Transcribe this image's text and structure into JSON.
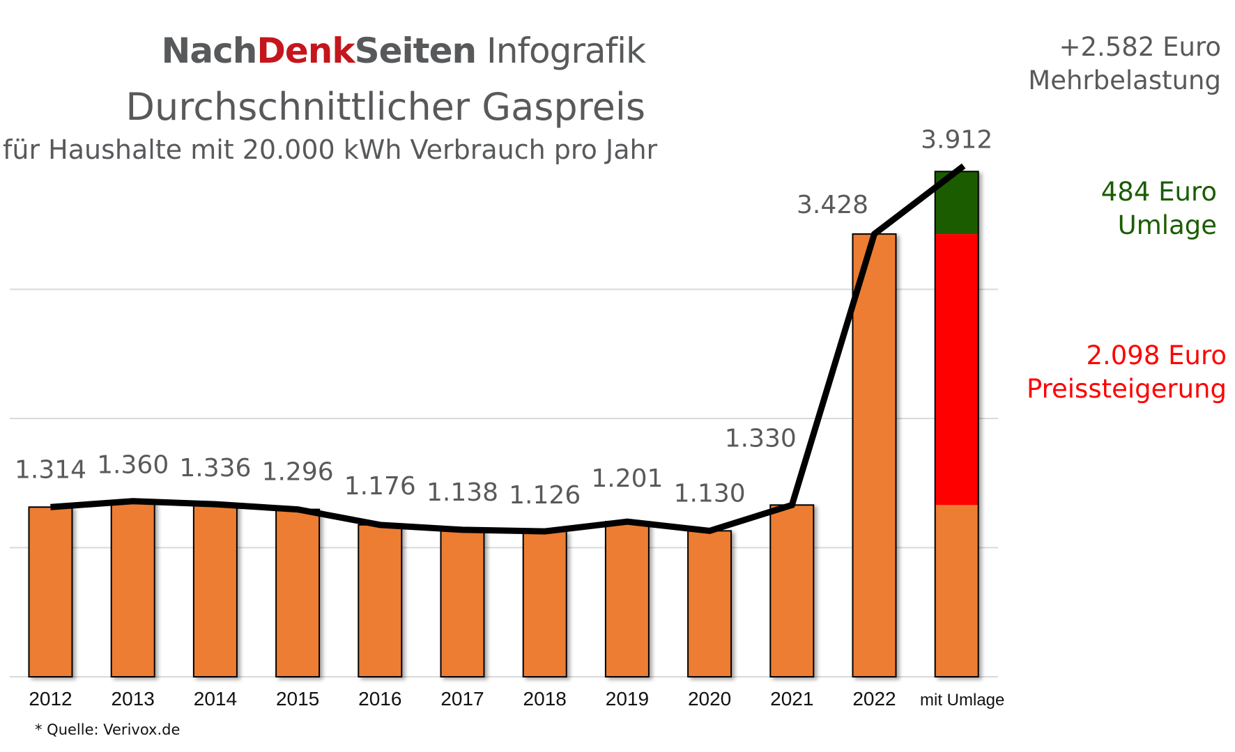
{
  "header": {
    "brand_nach": "Nach",
    "brand_denk": "Denk",
    "brand_seiten": "Seiten",
    "brand_suffix": " Infografik",
    "title": "Durchschnittlicher Gaspreis",
    "subtitle": "für Haushalte mit 20.000 kWh Verbrauch pro Jahr"
  },
  "annotations": {
    "total_line1": "+2.582 Euro",
    "total_line2": "Mehrbelastung",
    "umlage_line1": "484 Euro",
    "umlage_line2": "Umlage",
    "price_line1": "2.098 Euro",
    "price_line2": "Preissteigerung"
  },
  "footer": {
    "source": "* Quelle: Verivox.de"
  },
  "colors": {
    "bar": "#ed7d31",
    "umlage": "#1a5c00",
    "increase": "#ff0000",
    "line": "#000000",
    "text": "#58595b",
    "brand_red": "#c4161c"
  },
  "chart_data": {
    "type": "bar",
    "categories": [
      "2012",
      "2013",
      "2014",
      "2015",
      "2016",
      "2017",
      "2018",
      "2019",
      "2020",
      "2021",
      "2022",
      "mit Umlage"
    ],
    "values": [
      1314,
      1360,
      1336,
      1296,
      1176,
      1138,
      1126,
      1201,
      1130,
      1330,
      3428,
      3912
    ],
    "value_labels": [
      "1.314",
      "1.360",
      "1.336",
      "1.296",
      "1.176",
      "1.138",
      "1.126",
      "1.201",
      "1.130",
      "1.330",
      "3.428",
      "3.912"
    ],
    "stacked_last": {
      "base": 1330,
      "segments": [
        {
          "label": "Preissteigerung",
          "value": 2098,
          "color": "#ff0000"
        },
        {
          "label": "Umlage",
          "value": 484,
          "color": "#1a5c00"
        }
      ]
    },
    "overlay_line": true,
    "ylim": [
      0,
      4000
    ],
    "gridlines": [
      0,
      1000,
      2000,
      3000
    ],
    "grid": true,
    "y_tick_labels": false
  }
}
